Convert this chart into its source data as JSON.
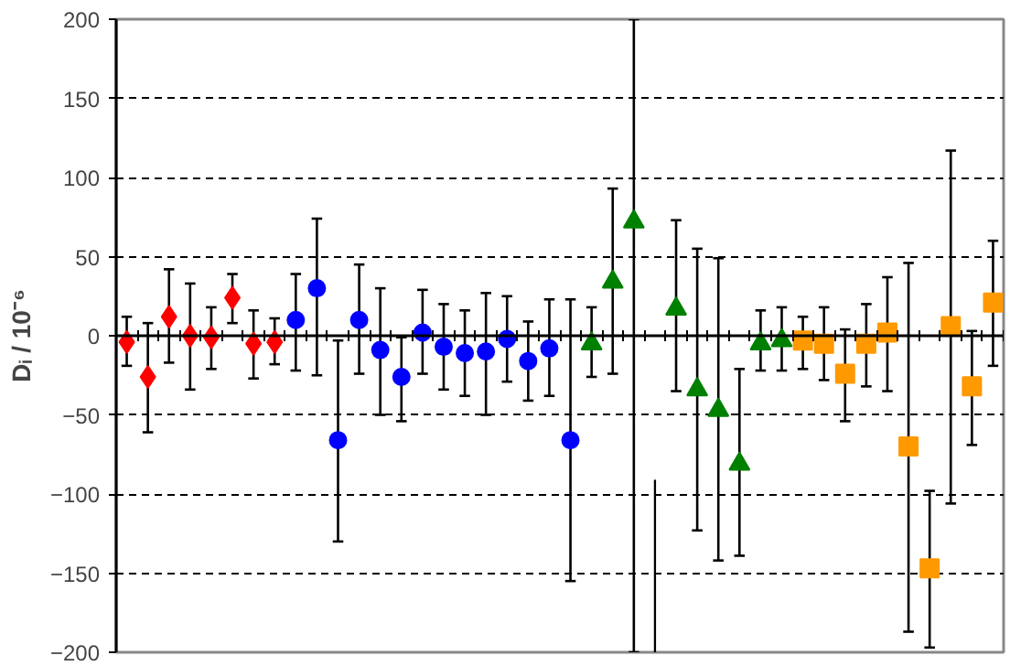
{
  "chart_data": {
    "type": "scatter",
    "ylabel": "Dᵢ / 10⁻⁶",
    "categories": [
      null,
      null,
      null,
      null,
      null,
      null,
      null,
      null,
      null,
      null,
      null,
      null,
      null,
      null,
      null,
      null,
      null,
      null,
      null,
      null,
      null,
      null,
      null,
      null,
      null,
      null,
      null,
      null,
      null,
      null,
      null,
      null,
      null,
      null,
      null,
      null,
      null,
      null,
      null,
      null,
      null,
      null
    ],
    "ylim": [
      -200,
      200
    ],
    "yticks": [
      -200,
      -150,
      -100,
      -50,
      0,
      50,
      100,
      150,
      200
    ],
    "grid": "y",
    "tick_labels": "y",
    "series": [
      {
        "color": "#ff0000",
        "marker": "diamond",
        "values": [
          -4,
          -26,
          12,
          0,
          -1,
          24,
          -5,
          -4,
          null,
          null,
          null,
          null,
          null,
          null,
          null,
          null,
          null,
          null,
          null,
          null,
          null,
          null,
          null,
          null,
          null,
          null,
          null,
          null,
          null,
          null,
          null,
          null,
          null,
          null,
          null,
          null,
          null,
          null,
          null,
          null,
          null,
          null
        ],
        "errors": [
          [
            -19,
            12
          ],
          [
            -61,
            8
          ],
          [
            -17,
            42
          ],
          [
            -34,
            33
          ],
          [
            -21,
            18
          ],
          [
            8,
            39
          ],
          [
            -27,
            16
          ],
          [
            -18,
            11
          ],
          null,
          null,
          null,
          null,
          null,
          null,
          null,
          null,
          null,
          null,
          null,
          null,
          null,
          null,
          null,
          null,
          null,
          null,
          null,
          null,
          null,
          null,
          null,
          null,
          null,
          null,
          null,
          null,
          null,
          null,
          null,
          null,
          null,
          null
        ]
      },
      {
        "color": "#0000ff",
        "marker": "circle",
        "values": [
          null,
          null,
          null,
          null,
          null,
          null,
          null,
          null,
          10,
          30,
          -66,
          10,
          -9,
          -26,
          2,
          -7,
          -11,
          -10,
          -2,
          -16,
          -8,
          -66,
          null,
          null,
          null,
          null,
          null,
          null,
          null,
          null,
          null,
          null,
          null,
          null,
          null,
          null,
          null,
          null,
          null,
          null,
          null,
          null
        ],
        "errors": [
          null,
          null,
          null,
          null,
          null,
          null,
          null,
          null,
          [
            -22,
            39
          ],
          [
            -25,
            74
          ],
          [
            -130,
            -3
          ],
          [
            -24,
            45
          ],
          [
            -50,
            30
          ],
          [
            -54,
            -1
          ],
          [
            -24,
            29
          ],
          [
            -34,
            20
          ],
          [
            -38,
            16
          ],
          [
            -50,
            27
          ],
          [
            -29,
            25
          ],
          [
            -41,
            9
          ],
          [
            -38,
            23
          ],
          [
            -155,
            23
          ],
          null,
          null,
          null,
          null,
          null,
          null,
          null,
          null,
          null,
          null,
          null,
          null,
          null,
          null,
          null,
          null,
          null,
          null,
          null,
          null
        ]
      },
      {
        "color": "#008000",
        "marker": "triangle",
        "values": [
          null,
          null,
          null,
          null,
          null,
          null,
          null,
          null,
          null,
          null,
          null,
          null,
          null,
          null,
          null,
          null,
          null,
          null,
          null,
          null,
          null,
          null,
          -5,
          34,
          72,
          null,
          17,
          -34,
          -47,
          -81,
          -5,
          -3,
          null,
          null,
          null,
          null,
          null,
          null,
          null,
          null,
          null,
          null
        ],
        "errors": [
          null,
          null,
          null,
          null,
          null,
          null,
          null,
          null,
          null,
          null,
          null,
          null,
          null,
          null,
          null,
          null,
          null,
          null,
          null,
          null,
          null,
          null,
          [
            -26,
            18
          ],
          [
            -24,
            93
          ],
          [
            -200,
            200
          ],
          null,
          [
            -35,
            73
          ],
          [
            -123,
            55
          ],
          [
            -142,
            49
          ],
          [
            -139,
            -21
          ],
          [
            -22,
            16
          ],
          [
            -22,
            18
          ],
          null,
          null,
          null,
          null,
          null,
          null,
          null,
          null,
          null,
          null
        ]
      },
      {
        "color": "#ff9900",
        "marker": "square",
        "values": [
          null,
          null,
          null,
          null,
          null,
          null,
          null,
          null,
          null,
          null,
          null,
          null,
          null,
          null,
          null,
          null,
          null,
          null,
          null,
          null,
          null,
          null,
          null,
          null,
          null,
          null,
          null,
          null,
          null,
          null,
          null,
          null,
          -3,
          -5,
          -24,
          -5,
          2,
          -70,
          -147,
          6,
          -32,
          21
        ],
        "errors": [
          null,
          null,
          null,
          null,
          null,
          null,
          null,
          null,
          null,
          null,
          null,
          null,
          null,
          null,
          null,
          null,
          null,
          null,
          null,
          null,
          null,
          null,
          null,
          null,
          null,
          null,
          null,
          null,
          null,
          null,
          null,
          null,
          [
            -21,
            12
          ],
          [
            -28,
            18
          ],
          [
            -54,
            4
          ],
          [
            -32,
            20
          ],
          [
            -35,
            37
          ],
          [
            -187,
            46
          ],
          [
            -197,
            -98
          ],
          [
            -106,
            117
          ],
          [
            -69,
            3
          ],
          [
            -19,
            60
          ]
        ]
      },
      {
        "type": "bar",
        "color": "#000000",
        "values": [
          null,
          null,
          null,
          null,
          null,
          null,
          null,
          null,
          null,
          null,
          null,
          null,
          null,
          null,
          null,
          null,
          null,
          null,
          null,
          null,
          null,
          null,
          null,
          null,
          null,
          109,
          null,
          null,
          null,
          null,
          null,
          null,
          null,
          null,
          null,
          null,
          null,
          null,
          null,
          null,
          null,
          null
        ],
        "base": [
          null,
          null,
          null,
          null,
          null,
          null,
          null,
          null,
          null,
          null,
          null,
          null,
          null,
          null,
          null,
          null,
          null,
          null,
          null,
          null,
          null,
          null,
          null,
          null,
          null,
          -200,
          null,
          null,
          null,
          null,
          null,
          null,
          null,
          null,
          null,
          null,
          null,
          null,
          null,
          null,
          null,
          null
        ]
      }
    ]
  }
}
